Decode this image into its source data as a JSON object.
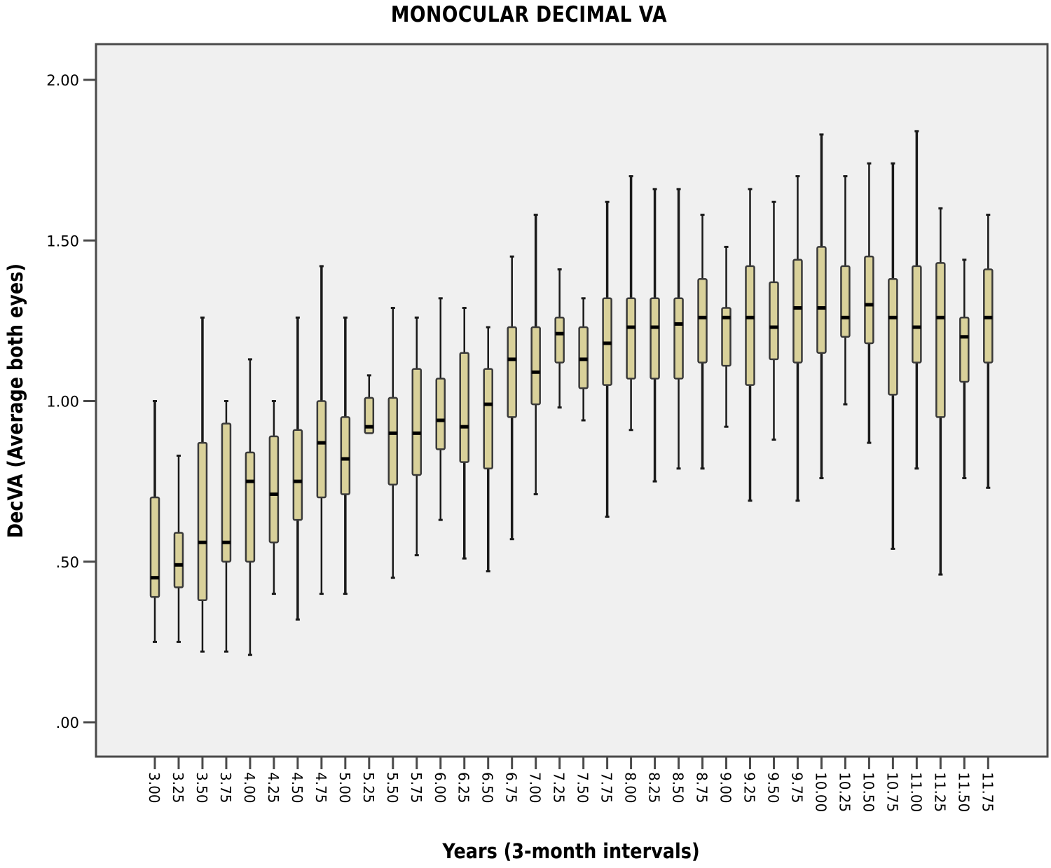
{
  "chart_data": {
    "type": "boxplot",
    "title": "MONOCULAR DECIMAL VA",
    "xlabel": "Years (3-month intervals)",
    "ylabel": "DecVA (Average both eyes)",
    "ylim": [
      -0.11,
      2.11
    ],
    "yticks": [
      0.0,
      0.5,
      1.0,
      1.5,
      2.0
    ],
    "ytick_labels": [
      ".00",
      ".50",
      "1.00",
      "1.50",
      "2.00"
    ],
    "grid": false,
    "legend": null,
    "colors": {
      "box_fill": "#d9d19a",
      "box_stroke": "#3a3a3a",
      "plot_bg": "#f0f0f0",
      "frame": "#4a4a4a"
    },
    "categories": [
      "3.00",
      "3.25",
      "3.50",
      "3.75",
      "4.00",
      "4.25",
      "4.50",
      "4.75",
      "5.00",
      "5.25",
      "5.50",
      "5.75",
      "6.00",
      "6.25",
      "6.50",
      "6.75",
      "7.00",
      "7.25",
      "7.50",
      "7.75",
      "8.00",
      "8.25",
      "8.50",
      "8.75",
      "9.00",
      "9.25",
      "9.50",
      "9.75",
      "10.00",
      "10.25",
      "10.50",
      "10.75",
      "11.00",
      "11.25",
      "11.50",
      "11.75"
    ],
    "boxes": [
      {
        "x": "3.00",
        "max": 1.0,
        "q3": 0.7,
        "median": 0.45,
        "q1": 0.39,
        "min": 0.25
      },
      {
        "x": "3.25",
        "max": 0.83,
        "q3": 0.59,
        "median": 0.49,
        "q1": 0.42,
        "min": 0.25
      },
      {
        "x": "3.50",
        "max": 1.26,
        "q3": 0.87,
        "median": 0.56,
        "q1": 0.38,
        "min": 0.22
      },
      {
        "x": "3.75",
        "max": 1.0,
        "q3": 0.93,
        "median": 0.56,
        "q1": 0.5,
        "min": 0.22
      },
      {
        "x": "4.00",
        "max": 1.13,
        "q3": 0.84,
        "median": 0.75,
        "q1": 0.5,
        "min": 0.21
      },
      {
        "x": "4.25",
        "max": 1.0,
        "q3": 0.89,
        "median": 0.71,
        "q1": 0.56,
        "min": 0.4
      },
      {
        "x": "4.50",
        "max": 1.26,
        "q3": 0.91,
        "median": 0.75,
        "q1": 0.63,
        "min": 0.32
      },
      {
        "x": "4.75",
        "max": 1.42,
        "q3": 1.0,
        "median": 0.87,
        "q1": 0.7,
        "min": 0.4
      },
      {
        "x": "5.00",
        "max": 1.26,
        "q3": 0.95,
        "median": 0.82,
        "q1": 0.71,
        "min": 0.4
      },
      {
        "x": "5.25",
        "max": 1.08,
        "q3": 1.01,
        "median": 0.92,
        "q1": 0.9,
        "min": 0.9
      },
      {
        "x": "5.50",
        "max": 1.29,
        "q3": 1.01,
        "median": 0.9,
        "q1": 0.74,
        "min": 0.45
      },
      {
        "x": "5.75",
        "max": 1.26,
        "q3": 1.1,
        "median": 0.9,
        "q1": 0.77,
        "min": 0.52
      },
      {
        "x": "6.00",
        "max": 1.32,
        "q3": 1.07,
        "median": 0.94,
        "q1": 0.85,
        "min": 0.63
      },
      {
        "x": "6.25",
        "max": 1.29,
        "q3": 1.15,
        "median": 0.92,
        "q1": 0.81,
        "min": 0.51
      },
      {
        "x": "6.50",
        "max": 1.23,
        "q3": 1.1,
        "median": 0.99,
        "q1": 0.79,
        "min": 0.47
      },
      {
        "x": "6.75",
        "max": 1.45,
        "q3": 1.23,
        "median": 1.13,
        "q1": 0.95,
        "min": 0.57
      },
      {
        "x": "7.00",
        "max": 1.58,
        "q3": 1.23,
        "median": 1.09,
        "q1": 0.99,
        "min": 0.71
      },
      {
        "x": "7.25",
        "max": 1.41,
        "q3": 1.26,
        "median": 1.21,
        "q1": 1.12,
        "min": 0.98
      },
      {
        "x": "7.50",
        "max": 1.32,
        "q3": 1.23,
        "median": 1.13,
        "q1": 1.04,
        "min": 0.94
      },
      {
        "x": "7.75",
        "max": 1.62,
        "q3": 1.32,
        "median": 1.18,
        "q1": 1.05,
        "min": 0.64
      },
      {
        "x": "8.00",
        "max": 1.7,
        "q3": 1.32,
        "median": 1.23,
        "q1": 1.07,
        "min": 0.91
      },
      {
        "x": "8.25",
        "max": 1.66,
        "q3": 1.32,
        "median": 1.23,
        "q1": 1.07,
        "min": 0.75
      },
      {
        "x": "8.50",
        "max": 1.66,
        "q3": 1.32,
        "median": 1.24,
        "q1": 1.07,
        "min": 0.79
      },
      {
        "x": "8.75",
        "max": 1.58,
        "q3": 1.38,
        "median": 1.26,
        "q1": 1.12,
        "min": 0.79
      },
      {
        "x": "9.00",
        "max": 1.48,
        "q3": 1.29,
        "median": 1.26,
        "q1": 1.11,
        "min": 0.92
      },
      {
        "x": "9.25",
        "max": 1.66,
        "q3": 1.42,
        "median": 1.26,
        "q1": 1.05,
        "min": 0.69
      },
      {
        "x": "9.50",
        "max": 1.62,
        "q3": 1.37,
        "median": 1.23,
        "q1": 1.13,
        "min": 0.88
      },
      {
        "x": "9.75",
        "max": 1.7,
        "q3": 1.44,
        "median": 1.29,
        "q1": 1.12,
        "min": 0.69
      },
      {
        "x": "10.00",
        "max": 1.83,
        "q3": 1.48,
        "median": 1.29,
        "q1": 1.15,
        "min": 0.76
      },
      {
        "x": "10.25",
        "max": 1.7,
        "q3": 1.42,
        "median": 1.26,
        "q1": 1.2,
        "min": 0.99
      },
      {
        "x": "10.50",
        "max": 1.74,
        "q3": 1.45,
        "median": 1.3,
        "q1": 1.18,
        "min": 0.87
      },
      {
        "x": "10.75",
        "max": 1.74,
        "q3": 1.38,
        "median": 1.26,
        "q1": 1.02,
        "min": 0.54
      },
      {
        "x": "11.00",
        "max": 1.84,
        "q3": 1.42,
        "median": 1.23,
        "q1": 1.12,
        "min": 0.79
      },
      {
        "x": "11.25",
        "max": 1.6,
        "q3": 1.43,
        "median": 1.26,
        "q1": 0.95,
        "min": 0.46
      },
      {
        "x": "11.50",
        "max": 1.44,
        "q3": 1.26,
        "median": 1.2,
        "q1": 1.06,
        "min": 0.76
      },
      {
        "x": "11.75",
        "max": 1.58,
        "q3": 1.41,
        "median": 1.26,
        "q1": 1.12,
        "min": 0.73
      }
    ]
  }
}
